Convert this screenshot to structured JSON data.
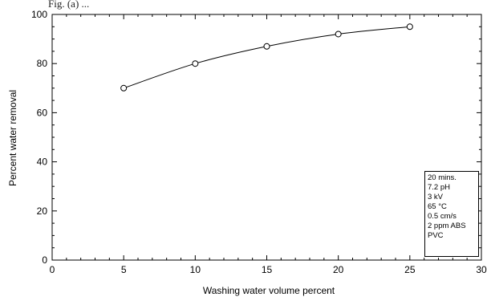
{
  "header_text": "Fig. (a) ...",
  "chart_data": {
    "type": "line",
    "title": "",
    "xlabel": "Washing water volume percent",
    "ylabel": "Percent water removal",
    "xlim": [
      0,
      30
    ],
    "ylim": [
      0,
      100
    ],
    "x_ticks": [
      0,
      5,
      10,
      15,
      20,
      25,
      30
    ],
    "y_ticks": [
      0,
      20,
      40,
      60,
      80,
      100
    ],
    "x_tick_labels": [
      "0",
      "5",
      "10",
      "15",
      "20",
      "25",
      "30"
    ],
    "y_tick_labels": [
      "0",
      "20",
      "40",
      "60",
      "80",
      "100"
    ],
    "grid": false,
    "marker": "open-circle",
    "series": [
      {
        "x": [
          5,
          10,
          15,
          20,
          25
        ],
        "y": [
          70,
          80,
          87,
          92,
          95
        ]
      }
    ],
    "annotation_box": {
      "placement": "bottom-right",
      "lines": [
        "20 mins.",
        "7.2 pH",
        "3 kV",
        "65 °C",
        "0.5 cm/s",
        "2 ppm ABS",
        "PVC"
      ]
    }
  }
}
